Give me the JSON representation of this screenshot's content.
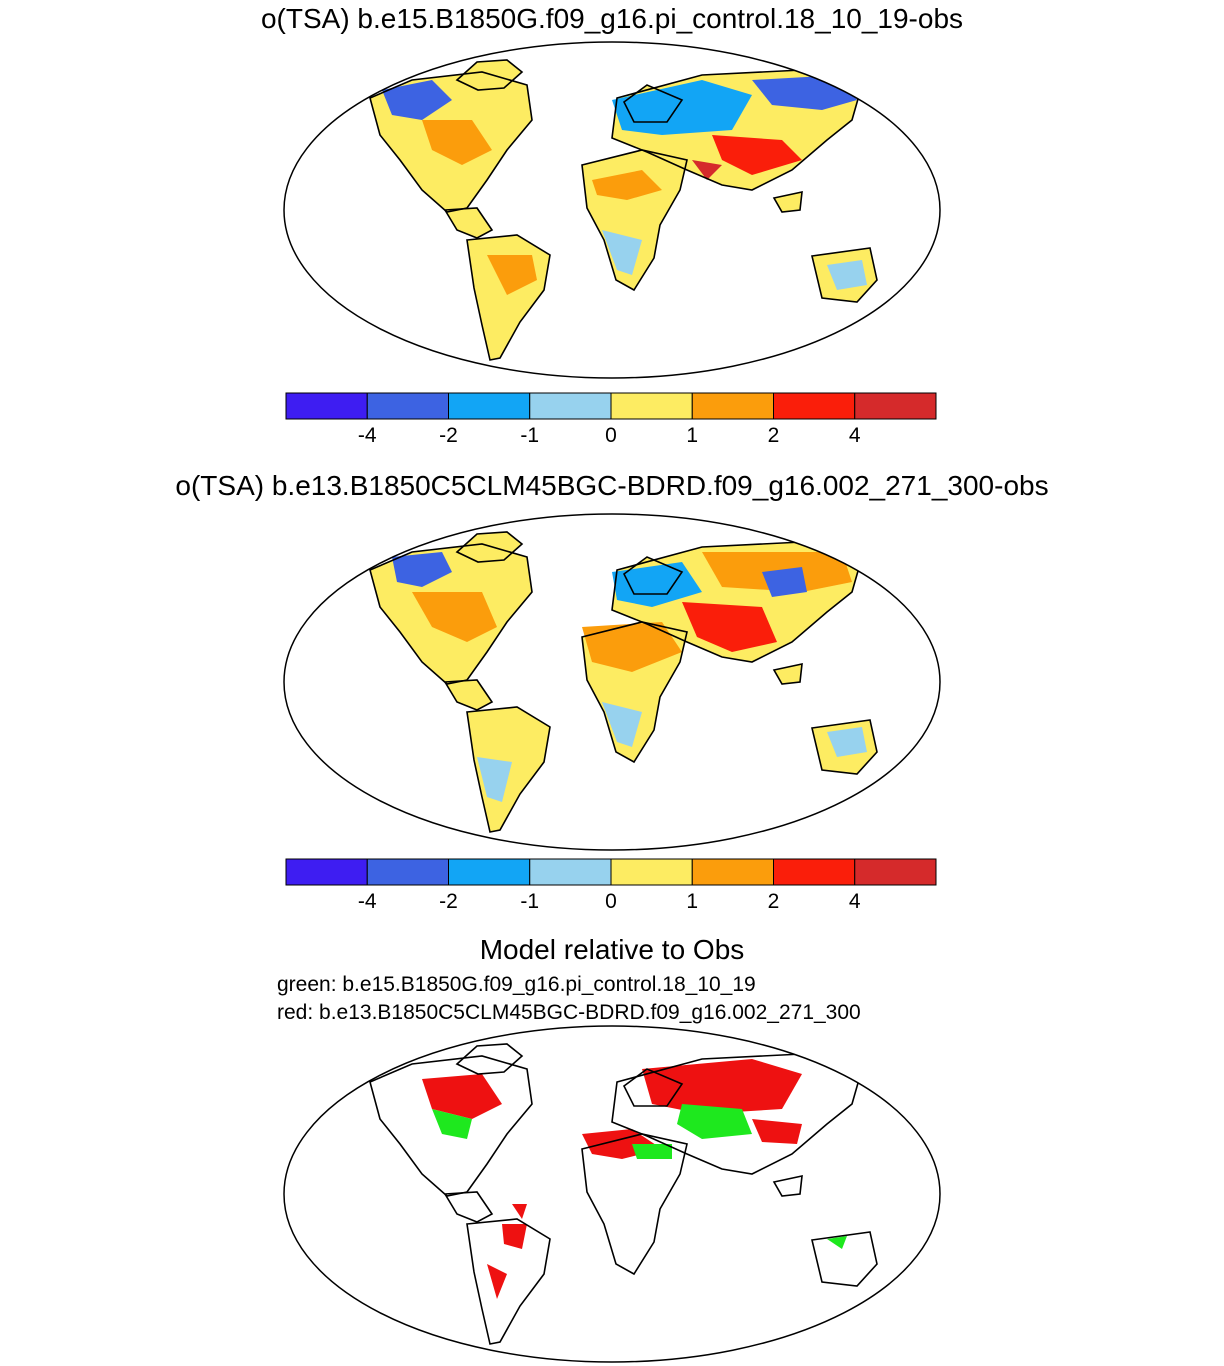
{
  "panels": [
    {
      "title": "o(TSA) b.e15.B1850G.f09_g16.pi_control.18_10_19-obs"
    },
    {
      "title": "o(TSA) b.e13.B1850C5CLM45BGC-BDRD.f09_g16.002_271_300-obs"
    },
    {
      "title": "Model relative to Obs",
      "legend_lines": [
        "green: b.e15.B1850G.f09_g16.pi_control.18_10_19",
        "red: b.e13.B1850C5CLM45BGC-BDRD.f09_g16.002_271_300"
      ]
    }
  ],
  "colorbar": {
    "colors": [
      "#3e1df2",
      "#3d63e2",
      "#12a5f5",
      "#97d2ee",
      "#fdec62",
      "#fb9d0c",
      "#fa1e0a",
      "#d52a2b"
    ],
    "tick_labels": [
      "-4",
      "-2",
      "-1",
      "0",
      "1",
      "2",
      "4"
    ]
  },
  "colors": {
    "green": "#1ee81e",
    "red": "#ee1111",
    "coast": "#000000"
  }
}
